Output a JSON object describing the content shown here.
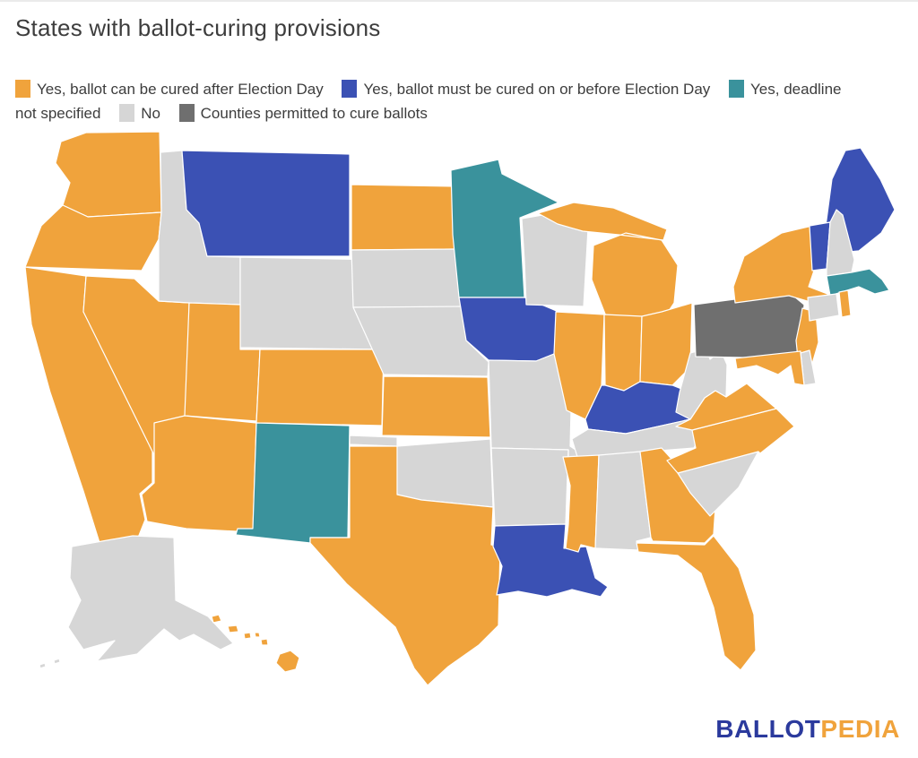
{
  "title": "States with ballot-curing provisions",
  "legend": {
    "items": [
      {
        "key": "cured_after",
        "label": "Yes, ballot can be cured after Election Day",
        "color": "#F0A33C"
      },
      {
        "key": "cured_on_or_before",
        "label": "Yes, ballot must be cured on or before Election Day",
        "color": "#3B51B4"
      },
      {
        "key": "no_deadline",
        "label": "Yes, deadline not specified",
        "color": "#3A929C"
      },
      {
        "key": "no",
        "label": "No",
        "color": "#D6D6D6"
      },
      {
        "key": "counties",
        "label": "Counties permitted to cure ballots",
        "color": "#6F6F6F"
      }
    ]
  },
  "map": {
    "border_color": "#ffffff",
    "states": [
      {
        "code": "WA",
        "name": "Washington",
        "category": "cured_after"
      },
      {
        "code": "OR",
        "name": "Oregon",
        "category": "cured_after"
      },
      {
        "code": "CA",
        "name": "California",
        "category": "cured_after"
      },
      {
        "code": "NV",
        "name": "Nevada",
        "category": "cured_after"
      },
      {
        "code": "ID",
        "name": "Idaho",
        "category": "no"
      },
      {
        "code": "MT",
        "name": "Montana",
        "category": "cured_on_or_before"
      },
      {
        "code": "WY",
        "name": "Wyoming",
        "category": "no"
      },
      {
        "code": "UT",
        "name": "Utah",
        "category": "cured_after"
      },
      {
        "code": "CO",
        "name": "Colorado",
        "category": "cured_after"
      },
      {
        "code": "AZ",
        "name": "Arizona",
        "category": "cured_after"
      },
      {
        "code": "NM",
        "name": "New Mexico",
        "category": "no_deadline"
      },
      {
        "code": "ND",
        "name": "North Dakota",
        "category": "cured_after"
      },
      {
        "code": "SD",
        "name": "South Dakota",
        "category": "no"
      },
      {
        "code": "NE",
        "name": "Nebraska",
        "category": "no"
      },
      {
        "code": "KS",
        "name": "Kansas",
        "category": "cured_after"
      },
      {
        "code": "OK",
        "name": "Oklahoma",
        "category": "no"
      },
      {
        "code": "TX",
        "name": "Texas",
        "category": "cured_after"
      },
      {
        "code": "MN",
        "name": "Minnesota",
        "category": "no_deadline"
      },
      {
        "code": "IA",
        "name": "Iowa",
        "category": "cured_on_or_before"
      },
      {
        "code": "MO",
        "name": "Missouri",
        "category": "no"
      },
      {
        "code": "AR",
        "name": "Arkansas",
        "category": "no"
      },
      {
        "code": "LA",
        "name": "Louisiana",
        "category": "cured_on_or_before"
      },
      {
        "code": "WI",
        "name": "Wisconsin",
        "category": "no"
      },
      {
        "code": "IL",
        "name": "Illinois",
        "category": "cured_after"
      },
      {
        "code": "MI",
        "name": "Michigan",
        "category": "cured_after"
      },
      {
        "code": "IN",
        "name": "Indiana",
        "category": "cured_after"
      },
      {
        "code": "OH",
        "name": "Ohio",
        "category": "cured_after"
      },
      {
        "code": "KY",
        "name": "Kentucky",
        "category": "cured_on_or_before"
      },
      {
        "code": "TN",
        "name": "Tennessee",
        "category": "no"
      },
      {
        "code": "MS",
        "name": "Mississippi",
        "category": "cured_after"
      },
      {
        "code": "AL",
        "name": "Alabama",
        "category": "no"
      },
      {
        "code": "GA",
        "name": "Georgia",
        "category": "cured_after"
      },
      {
        "code": "FL",
        "name": "Florida",
        "category": "cured_after"
      },
      {
        "code": "SC",
        "name": "South Carolina",
        "category": "no"
      },
      {
        "code": "NC",
        "name": "North Carolina",
        "category": "cured_after"
      },
      {
        "code": "VA",
        "name": "Virginia",
        "category": "cured_after"
      },
      {
        "code": "WV",
        "name": "West Virginia",
        "category": "no"
      },
      {
        "code": "PA",
        "name": "Pennsylvania",
        "category": "counties"
      },
      {
        "code": "NY",
        "name": "New York",
        "category": "cured_after"
      },
      {
        "code": "NJ",
        "name": "New Jersey",
        "category": "cured_after"
      },
      {
        "code": "DE",
        "name": "Delaware",
        "category": "no"
      },
      {
        "code": "MD",
        "name": "Maryland",
        "category": "cured_after"
      },
      {
        "code": "ME",
        "name": "Maine",
        "category": "cured_on_or_before"
      },
      {
        "code": "VT",
        "name": "Vermont",
        "category": "cured_on_or_before"
      },
      {
        "code": "NH",
        "name": "New Hampshire",
        "category": "no"
      },
      {
        "code": "MA",
        "name": "Massachusetts",
        "category": "no_deadline"
      },
      {
        "code": "CT",
        "name": "Connecticut",
        "category": "no"
      },
      {
        "code": "RI",
        "name": "Rhode Island",
        "category": "cured_after"
      },
      {
        "code": "AK",
        "name": "Alaska",
        "category": "no"
      },
      {
        "code": "HI",
        "name": "Hawaii",
        "category": "cured_after"
      }
    ]
  },
  "logo": {
    "primary": "BALLOT",
    "secondary": "PEDIA",
    "primary_color": "#2B3A9D",
    "secondary_color": "#F0A33C"
  }
}
